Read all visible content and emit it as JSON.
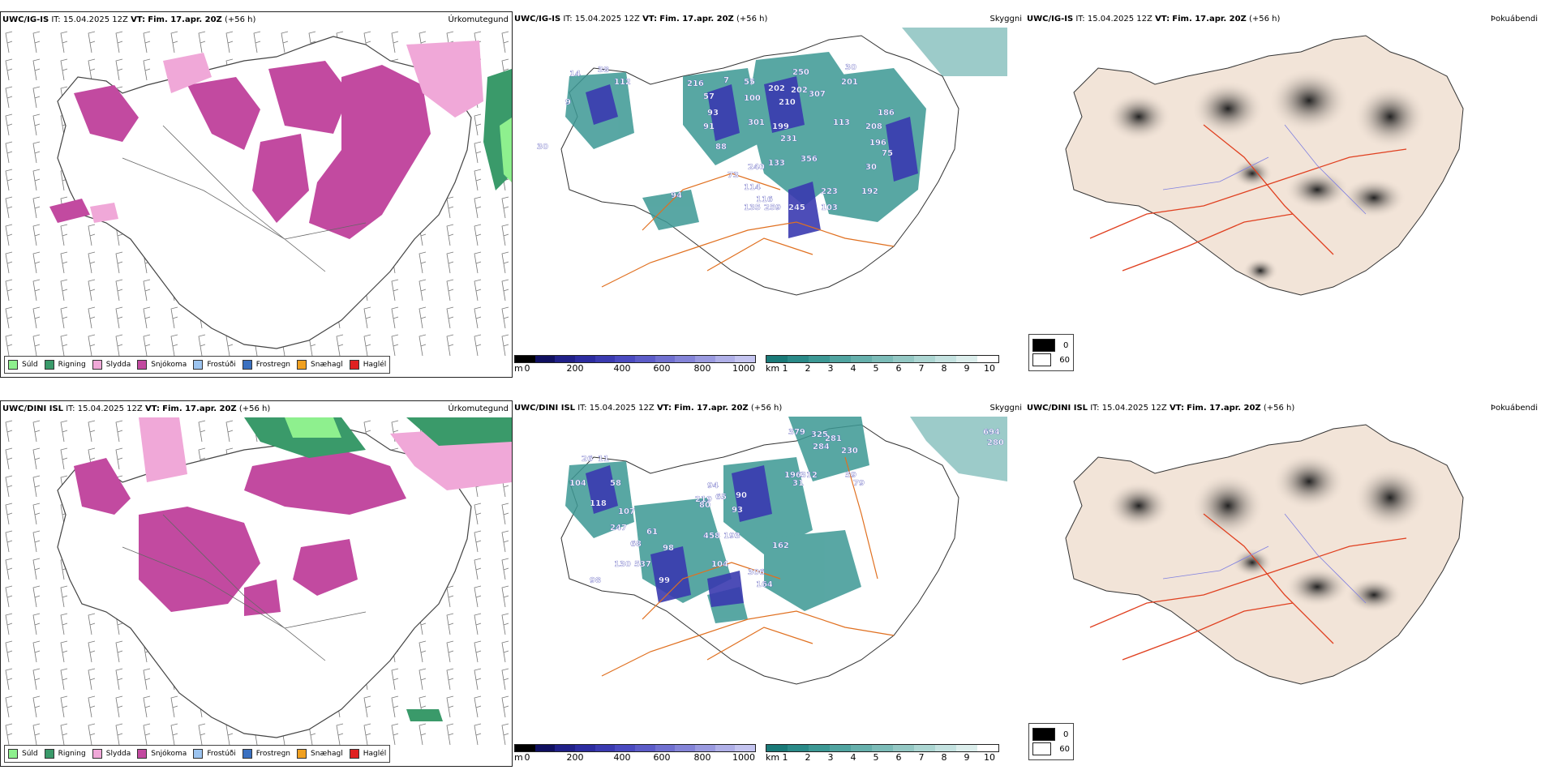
{
  "rows": [
    {
      "model": "UWC/IG-IS",
      "it_label": "IT:",
      "it_value": "15.04.2025 12Z",
      "vt_label": "VT:",
      "vt_value": "Fim. 17.apr. 20Z",
      "offset": "(+56 h)",
      "panels": [
        "Úrkomutegund",
        "Skyggni",
        "Þokuábendi"
      ],
      "visibility_labels": [
        {
          "text": "30"
        },
        {
          "text": "14"
        },
        {
          "text": "38"
        },
        {
          "text": "9"
        },
        {
          "text": "112"
        },
        {
          "text": "216"
        },
        {
          "text": "57"
        },
        {
          "text": "93"
        },
        {
          "text": "7"
        },
        {
          "text": "55"
        },
        {
          "text": "100"
        },
        {
          "text": "202"
        },
        {
          "text": "210"
        },
        {
          "text": "250"
        },
        {
          "text": "202"
        },
        {
          "text": "307"
        },
        {
          "text": "201"
        },
        {
          "text": "30"
        },
        {
          "text": "91"
        },
        {
          "text": "88"
        },
        {
          "text": "301"
        },
        {
          "text": "199"
        },
        {
          "text": "231"
        },
        {
          "text": "113"
        },
        {
          "text": "240"
        },
        {
          "text": "133"
        },
        {
          "text": "356"
        },
        {
          "text": "208"
        },
        {
          "text": "196"
        },
        {
          "text": "75"
        },
        {
          "text": "73"
        },
        {
          "text": "114"
        },
        {
          "text": "116"
        },
        {
          "text": "94"
        },
        {
          "text": "135"
        },
        {
          "text": "259"
        },
        {
          "text": "223"
        },
        {
          "text": "103"
        },
        {
          "text": "245"
        },
        {
          "text": "192"
        },
        {
          "text": "30"
        },
        {
          "text": "186"
        }
      ]
    },
    {
      "model": "UWC/DINI ISL",
      "it_label": "IT:",
      "it_value": "15.04.2025 12Z",
      "vt_label": "VT:",
      "vt_value": "Fim. 17.apr. 20Z",
      "offset": "(+56 h)",
      "panels": [
        "Úrkomutegund",
        "Skyggni",
        "Þokuábendi"
      ],
      "visibility_labels": [
        {
          "text": "26"
        },
        {
          "text": "11"
        },
        {
          "text": "104"
        },
        {
          "text": "58"
        },
        {
          "text": "118"
        },
        {
          "text": "107"
        },
        {
          "text": "247"
        },
        {
          "text": "61"
        },
        {
          "text": "68"
        },
        {
          "text": "130"
        },
        {
          "text": "537"
        },
        {
          "text": "98"
        },
        {
          "text": "99"
        },
        {
          "text": "98"
        },
        {
          "text": "219"
        },
        {
          "text": "80"
        },
        {
          "text": "94"
        },
        {
          "text": "65"
        },
        {
          "text": "90"
        },
        {
          "text": "193"
        },
        {
          "text": "93"
        },
        {
          "text": "458"
        },
        {
          "text": "104"
        },
        {
          "text": "306"
        },
        {
          "text": "164"
        },
        {
          "text": "162"
        },
        {
          "text": "379"
        },
        {
          "text": "325"
        },
        {
          "text": "281"
        },
        {
          "text": "196"
        },
        {
          "text": "312"
        },
        {
          "text": "31"
        },
        {
          "text": "230"
        },
        {
          "text": "284"
        },
        {
          "text": "280"
        },
        {
          "text": "694"
        },
        {
          "text": "59"
        },
        {
          "text": "79"
        }
      ]
    }
  ],
  "precip_legend": [
    {
      "label": "Súld",
      "color": "#8ef08e"
    },
    {
      "label": "Rigning",
      "color": "#3a9a6a"
    },
    {
      "label": "Slydda",
      "color": "#f0a8d8"
    },
    {
      "label": "Snjókoma",
      "color": "#c24aa0"
    },
    {
      "label": "Frostúði",
      "color": "#9cc4f0"
    },
    {
      "label": "Frostregn",
      "color": "#3a70c0"
    },
    {
      "label": "Snæhagl",
      "color": "#f0a020"
    },
    {
      "label": "Haglél",
      "color": "#e02020"
    }
  ],
  "cloud_base_scale": {
    "unit": "m",
    "ticks": [
      "0",
      "200",
      "400",
      "600",
      "800",
      "1000"
    ],
    "colors": [
      "#000000",
      "#101060",
      "#202088",
      "#2c2ca0",
      "#3a3ab0",
      "#4a4ac0",
      "#5c5cc8",
      "#7070d0",
      "#8484d8",
      "#9a9ae0",
      "#b0b0e8",
      "#c4c4f0"
    ]
  },
  "visibility_scale": {
    "unit": "km",
    "ticks": [
      "1",
      "2",
      "3",
      "4",
      "5",
      "6",
      "7",
      "8",
      "9",
      "10"
    ],
    "colors": [
      "#1a7a78",
      "#2a8a88",
      "#3c9894",
      "#50a4a0",
      "#66b0ac",
      "#7cbcb8",
      "#94c8c4",
      "#acd6d2",
      "#c4e2e0",
      "#dceeec",
      "#ffffff"
    ]
  },
  "fog_legend": [
    {
      "label": "0",
      "color": "#000000"
    },
    {
      "label": "60",
      "color": "#ffffff"
    }
  ],
  "colors": {
    "snow": "#c24aa0",
    "sleet": "#f0a8d8",
    "rain": "#3a9a6a",
    "drizzle": "#8ef08e",
    "vis_teal": "#3c9894",
    "cloud_blue": "#3a3ab0",
    "land": "#f2e4d8",
    "roads": "#e07020",
    "rivers": "#8080e0"
  }
}
